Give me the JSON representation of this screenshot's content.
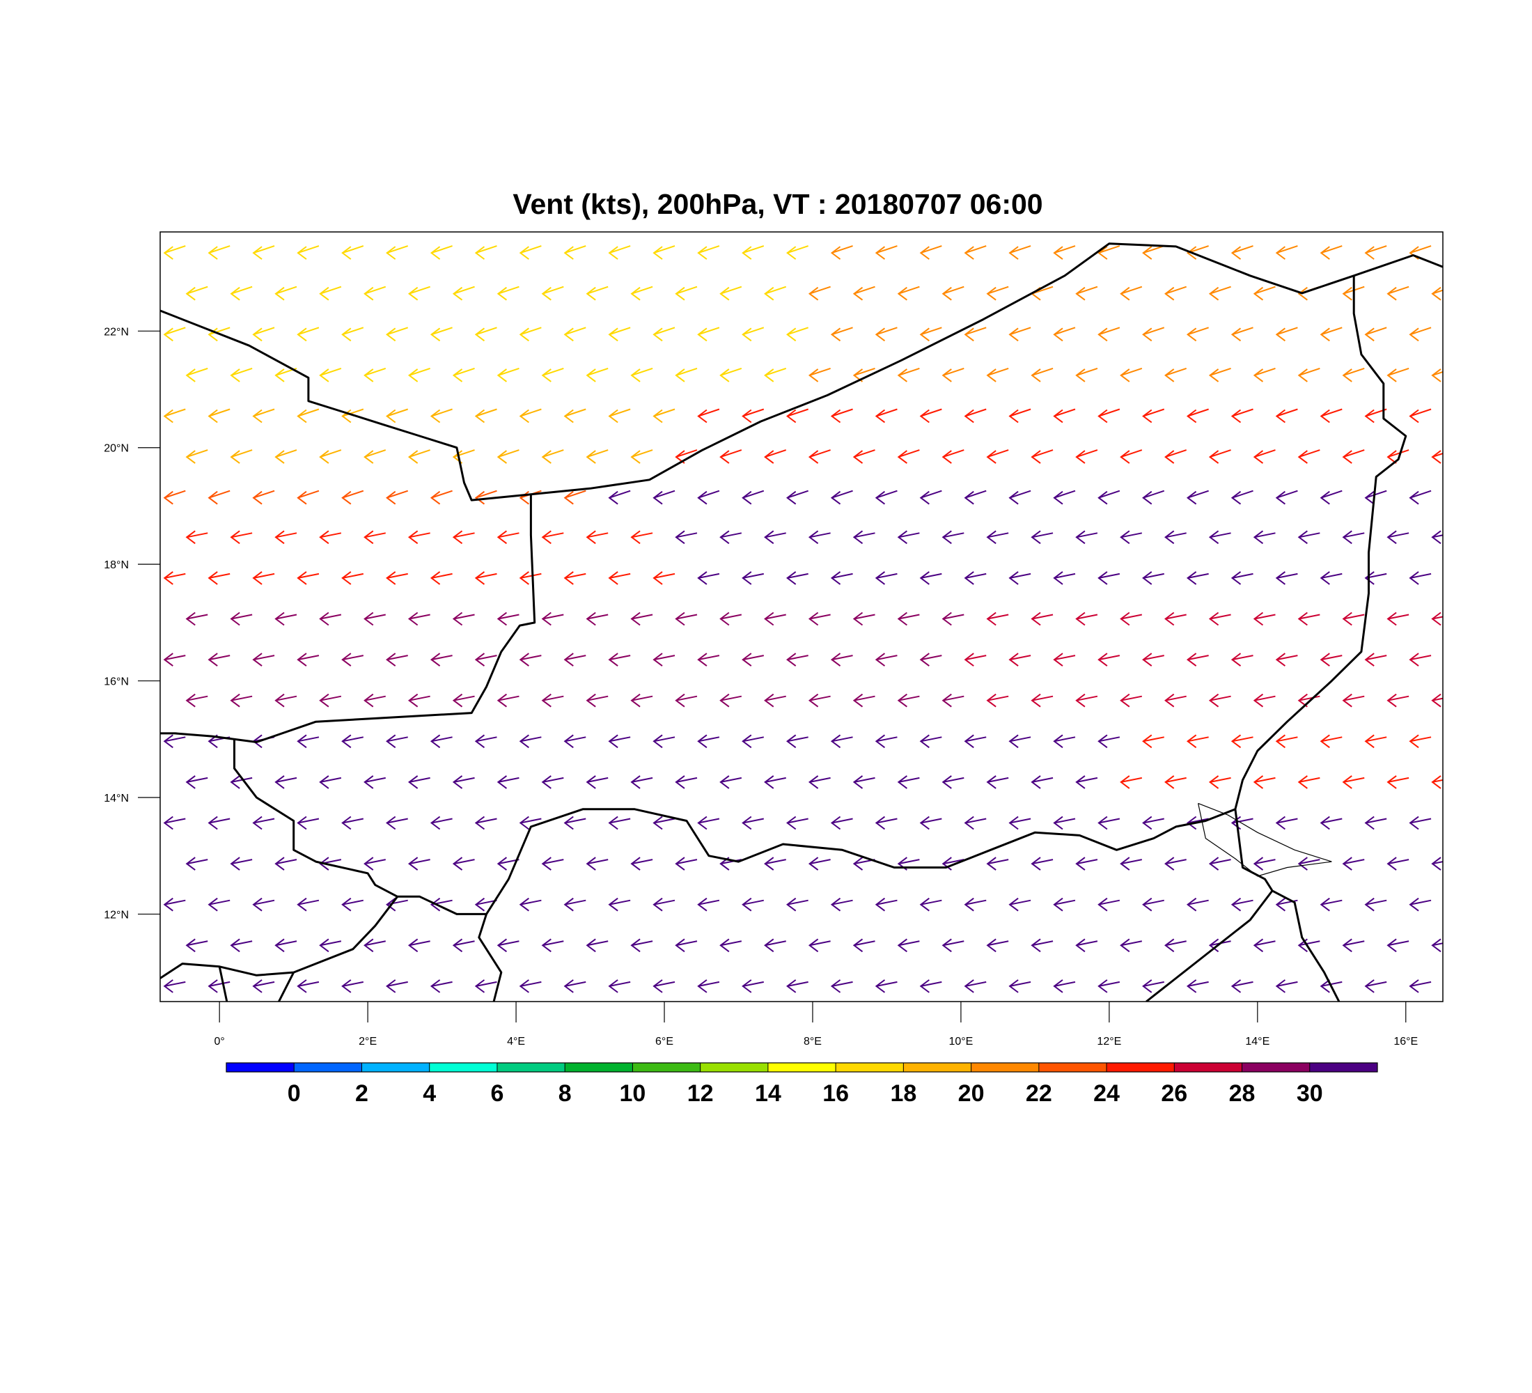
{
  "title": "Vent (kts), 200hPa, VT : 20180707  06:00",
  "map": {
    "lon_range": [
      -0.8,
      16.5
    ],
    "lat_range": [
      10.5,
      23.7
    ],
    "lon_ticks": [
      {
        "value": 0,
        "label": "0°"
      },
      {
        "value": 2,
        "label": "2°E"
      },
      {
        "value": 4,
        "label": "4°E"
      },
      {
        "value": 6,
        "label": "6°E"
      },
      {
        "value": 8,
        "label": "8°E"
      },
      {
        "value": 10,
        "label": "10°E"
      },
      {
        "value": 12,
        "label": "12°E"
      },
      {
        "value": 14,
        "label": "14°E"
      },
      {
        "value": 16,
        "label": "16°E"
      }
    ],
    "lat_ticks": [
      {
        "value": 12,
        "label": "12°N"
      },
      {
        "value": 14,
        "label": "14°N"
      },
      {
        "value": 16,
        "label": "16°N"
      },
      {
        "value": 18,
        "label": "18°N"
      },
      {
        "value": 20,
        "label": "20°N"
      },
      {
        "value": 22,
        "label": "22°N"
      }
    ],
    "borders": [
      [
        [
          -0.8,
          22.35
        ],
        [
          0.4,
          21.75
        ],
        [
          1.2,
          21.2
        ],
        [
          1.2,
          20.8
        ],
        [
          1.7,
          20.6
        ],
        [
          2.2,
          20.4
        ],
        [
          2.7,
          20.2
        ],
        [
          3.2,
          20.0
        ],
        [
          3.3,
          19.4
        ],
        [
          3.4,
          19.1
        ],
        [
          4.2,
          19.2
        ],
        [
          5.0,
          19.3
        ],
        [
          5.8,
          19.45
        ],
        [
          6.5,
          19.95
        ],
        [
          7.3,
          20.45
        ],
        [
          8.2,
          20.9
        ],
        [
          9.2,
          21.5
        ],
        [
          10.3,
          22.2
        ],
        [
          11.4,
          22.95
        ],
        [
          12.0,
          23.5
        ],
        [
          12.9,
          23.45
        ],
        [
          13.9,
          22.95
        ],
        [
          14.6,
          22.65
        ],
        [
          15.3,
          22.95
        ],
        [
          16.1,
          23.3
        ],
        [
          16.5,
          23.1
        ]
      ],
      [
        [
          15.3,
          22.95
        ],
        [
          15.3,
          22.3
        ],
        [
          15.4,
          21.6
        ],
        [
          15.7,
          21.1
        ],
        [
          15.7,
          20.5
        ],
        [
          16.0,
          20.2
        ],
        [
          15.9,
          19.8
        ],
        [
          15.6,
          19.5
        ],
        [
          15.5,
          18.2
        ],
        [
          15.5,
          17.5
        ],
        [
          15.4,
          16.5
        ],
        [
          15.0,
          16.0
        ],
        [
          14.4,
          15.3
        ],
        [
          14.0,
          14.8
        ],
        [
          13.8,
          14.3
        ],
        [
          13.7,
          13.8
        ],
        [
          13.3,
          13.6
        ],
        [
          12.9,
          13.5
        ],
        [
          12.6,
          13.3
        ],
        [
          12.1,
          13.1
        ],
        [
          11.6,
          13.35
        ],
        [
          11.0,
          13.4
        ],
        [
          10.4,
          13.1
        ],
        [
          9.8,
          12.8
        ],
        [
          9.1,
          12.8
        ],
        [
          8.4,
          13.1
        ],
        [
          7.6,
          13.2
        ],
        [
          7.0,
          12.9
        ],
        [
          6.6,
          13.0
        ],
        [
          6.3,
          13.6
        ],
        [
          5.6,
          13.8
        ],
        [
          4.9,
          13.8
        ],
        [
          4.2,
          13.5
        ],
        [
          3.9,
          12.6
        ],
        [
          3.6,
          12.0
        ],
        [
          3.5,
          11.6
        ],
        [
          3.8,
          11.0
        ],
        [
          3.7,
          10.5
        ]
      ],
      [
        [
          4.2,
          19.2
        ],
        [
          4.2,
          18.5
        ],
        [
          4.25,
          17.0
        ],
        [
          4.05,
          16.95
        ],
        [
          3.8,
          16.5
        ],
        [
          3.6,
          15.9
        ],
        [
          3.4,
          15.45
        ],
        [
          2.0,
          15.35
        ],
        [
          1.3,
          15.3
        ],
        [
          0.5,
          14.95
        ],
        [
          -0.1,
          15.05
        ],
        [
          -0.6,
          15.1
        ],
        [
          -0.8,
          15.1
        ]
      ],
      [
        [
          0.2,
          15.0
        ],
        [
          0.2,
          14.5
        ],
        [
          0.5,
          14.0
        ],
        [
          1.0,
          13.6
        ],
        [
          1.0,
          13.1
        ],
        [
          1.3,
          12.9
        ],
        [
          2.0,
          12.7
        ],
        [
          2.1,
          12.5
        ],
        [
          2.4,
          12.3
        ],
        [
          2.7,
          12.3
        ],
        [
          3.2,
          12.0
        ],
        [
          3.6,
          12.0
        ]
      ],
      [
        [
          2.4,
          12.3
        ],
        [
          2.1,
          11.8
        ],
        [
          1.8,
          11.4
        ],
        [
          1.0,
          11.0
        ],
        [
          0.5,
          10.95
        ],
        [
          0.0,
          11.1
        ],
        [
          -0.5,
          11.15
        ],
        [
          -0.8,
          10.9
        ]
      ],
      [
        [
          1.0,
          11.0
        ],
        [
          0.8,
          10.5
        ]
      ],
      [
        [
          0.0,
          11.1
        ],
        [
          0.1,
          10.5
        ]
      ],
      [
        [
          13.7,
          13.8
        ],
        [
          13.8,
          12.8
        ],
        [
          14.1,
          12.6
        ],
        [
          14.2,
          12.4
        ],
        [
          14.5,
          12.2
        ],
        [
          14.6,
          11.6
        ],
        [
          14.9,
          11.0
        ],
        [
          15.1,
          10.5
        ]
      ],
      [
        [
          14.2,
          12.4
        ],
        [
          13.9,
          11.9
        ],
        [
          13.3,
          11.3
        ],
        [
          12.9,
          10.9
        ],
        [
          12.6,
          10.6
        ],
        [
          12.5,
          10.5
        ]
      ]
    ],
    "lake_chad": [
      [
        13.2,
        13.9
      ],
      [
        13.6,
        13.7
      ],
      [
        14.0,
        13.4
      ],
      [
        14.5,
        13.1
      ],
      [
        15.0,
        12.9
      ],
      [
        14.4,
        12.8
      ],
      [
        14.0,
        12.65
      ],
      [
        13.7,
        12.95
      ],
      [
        13.3,
        13.3
      ],
      [
        13.2,
        13.9
      ]
    ],
    "vector_color": "#4b0082",
    "wind_grid_lat_rows": [
      23.4,
      22.7,
      22.0,
      21.3,
      20.6,
      19.9,
      19.2,
      18.5,
      17.8,
      17.1,
      16.4,
      15.7,
      15.0,
      14.3,
      13.6,
      12.9,
      12.2,
      11.5,
      10.8
    ],
    "wind_grid_lon_step": 0.6
  },
  "colorbar": {
    "labels": [
      "0",
      "2",
      "4",
      "6",
      "8",
      "10",
      "12",
      "14",
      "16",
      "18",
      "20",
      "22",
      "24",
      "26",
      "28",
      "30"
    ],
    "colors": [
      "#0000ff",
      "#0066ff",
      "#00b2ff",
      "#00ffd5",
      "#00cc80",
      "#00b22e",
      "#3dbb14",
      "#99e000",
      "#ffff00",
      "#ffd900",
      "#ffb300",
      "#ff8800",
      "#ff5500",
      "#ff1a00",
      "#cc0033",
      "#8b0060",
      "#4b0082"
    ]
  }
}
